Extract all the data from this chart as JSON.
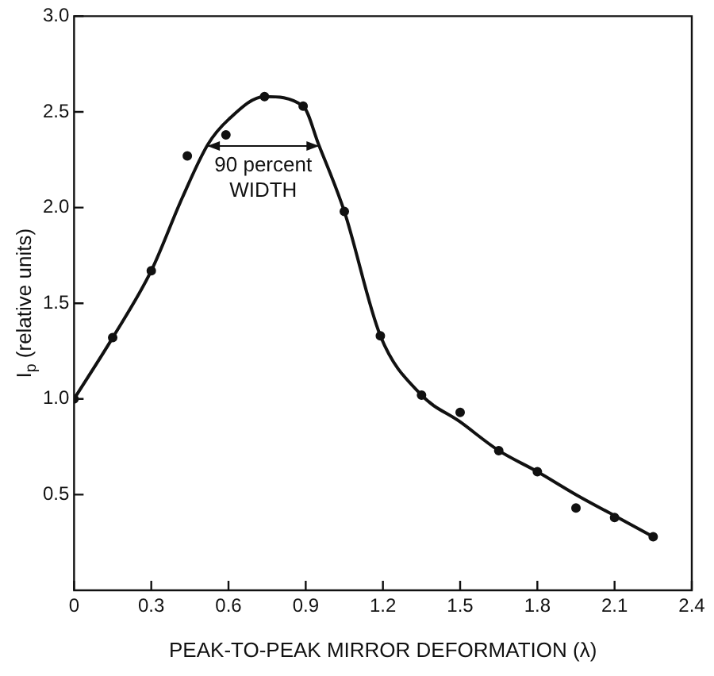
{
  "chart_data": {
    "type": "scatter",
    "xlabel": "PEAK-TO-PEAK MIRROR DEFORMATION (λ)",
    "ylabel": "I$_{p}$ (relative units)",
    "series": [
      {
        "marker": "circle",
        "color": "#111111",
        "x": [
          0,
          0.15,
          0.3,
          0.44,
          0.59,
          0.74,
          0.89,
          1.05,
          1.19,
          1.35,
          1.5,
          1.65,
          1.8,
          1.95,
          2.1,
          2.25
        ],
        "values": [
          1.0,
          1.32,
          1.67,
          2.27,
          2.38,
          2.58,
          2.53,
          1.98,
          1.33,
          1.02,
          0.93,
          0.73,
          0.62,
          0.43,
          0.38,
          0.28
        ]
      },
      {
        "type": "line",
        "marker": "none",
        "color": "#111111",
        "x": [
          0,
          0.15,
          0.3,
          0.42,
          0.52,
          0.6,
          0.74,
          0.89,
          0.95,
          1.05,
          1.19,
          1.35,
          1.5,
          1.65,
          1.8,
          1.95,
          2.1,
          2.25
        ],
        "values": [
          1.0,
          1.32,
          1.67,
          2.05,
          2.33,
          2.46,
          2.58,
          2.53,
          2.33,
          1.98,
          1.33,
          1.02,
          0.88,
          0.73,
          0.62,
          0.5,
          0.39,
          0.28
        ]
      }
    ],
    "annotations": [
      "90 percent\nWIDTH"
    ],
    "xlim": [
      0,
      2.4
    ],
    "xticks": [
      0,
      0.3,
      0.6,
      0.9,
      1.2,
      1.5,
      1.8,
      2.1,
      2.4
    ],
    "ylim": [
      0,
      3
    ],
    "yticks": [
      {
        "value": 0.5,
        "label": "0.5"
      },
      {
        "value": 1,
        "label": "1.0"
      },
      {
        "value": 1.5,
        "label": "1.5"
      },
      {
        "value": 2,
        "label": "2.0"
      },
      {
        "value": 2.5,
        "label": "2.5"
      },
      {
        "value": 3,
        "label": "3.0"
      }
    ],
    "grid": false,
    "legend": false
  }
}
